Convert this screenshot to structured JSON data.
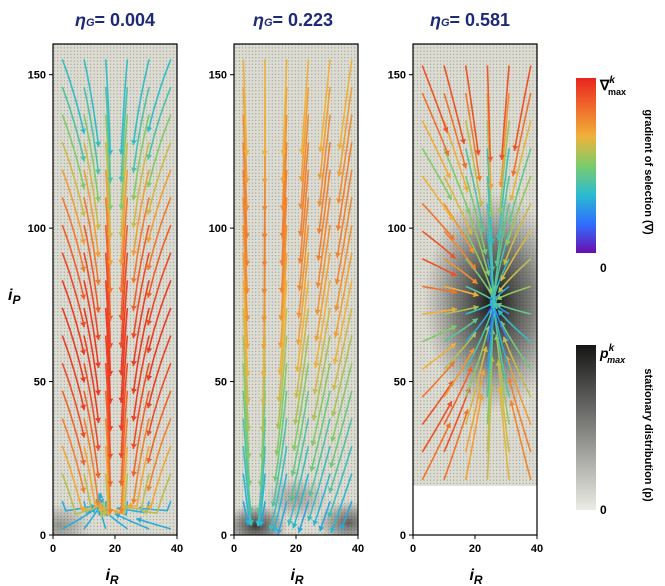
{
  "chart_data": [
    {
      "type": "streamplot",
      "title": "η_G = 0.004",
      "title_symbol": "η",
      "title_subscript": "G",
      "title_value": "= 0.004",
      "xlabel": "i_R",
      "ylabel": "i_P",
      "xlim": [
        0,
        40
      ],
      "ylim": [
        0,
        160
      ],
      "xticks": [
        "0",
        "20",
        "40"
      ],
      "yticks": [
        "0",
        "50",
        "100",
        "150"
      ],
      "density_peaks": [
        {
          "x": 2,
          "y": 3,
          "strength": 0.35
        }
      ],
      "empty_region_below_y": null,
      "flow": {
        "kind": "split",
        "split_y": 10,
        "sink_x": 20
      }
    },
    {
      "type": "streamplot",
      "title": "η_G = 0.223",
      "title_symbol": "η",
      "title_subscript": "G",
      "title_value": "= 0.223",
      "xlabel": "i_R",
      "xlim": [
        0,
        40
      ],
      "ylim": [
        0,
        160
      ],
      "xticks": [
        "0",
        "20",
        "40"
      ],
      "yticks": [
        "0",
        "50",
        "100",
        "150"
      ],
      "density_peaks": [
        {
          "x": 7,
          "y": 3,
          "strength": 0.8
        },
        {
          "x": 20,
          "y": 12,
          "strength": 0.3
        },
        {
          "x": 37,
          "y": 4,
          "strength": 0.6
        }
      ],
      "empty_region_below_y": null,
      "flow": {
        "kind": "corner",
        "sink_x": 6,
        "sink_y": 4
      }
    },
    {
      "type": "streamplot",
      "title": "η_G = 0.581",
      "title_symbol": "η",
      "title_subscript": "G",
      "title_value": "= 0.581",
      "xlabel": "i_R",
      "xlim": [
        0,
        40
      ],
      "ylim": [
        0,
        160
      ],
      "xticks": [
        "0",
        "20",
        "40"
      ],
      "yticks": [
        "0",
        "50",
        "100",
        "150"
      ],
      "density_peaks": [
        {
          "x": 26,
          "y": 76,
          "strength": 1.0
        }
      ],
      "empty_region_below_y": 16,
      "flow": {
        "kind": "node",
        "sink_x": 26,
        "sink_y": 76
      }
    }
  ],
  "colorbars": [
    {
      "label": "gradient of selection (∇)",
      "max_symbol": "∇",
      "max_superscript": "k",
      "max_subscript": "max",
      "min_label": "0",
      "colors": [
        "#6a0dad",
        "#2f6fff",
        "#2bbbd0",
        "#7ccc6a",
        "#f0b23a",
        "#f06a2a",
        "#e8251f"
      ]
    },
    {
      "label": "stationary distribution (p)",
      "max_symbol": "p",
      "max_superscript": "k",
      "max_subscript": "max",
      "min_label": "0",
      "colors": [
        "#ecece6",
        "#151515"
      ]
    }
  ],
  "colors": {
    "background_grid": "#dcdcd3",
    "grid_dot": "#8c8c84",
    "title_color": "#1e2a78"
  }
}
